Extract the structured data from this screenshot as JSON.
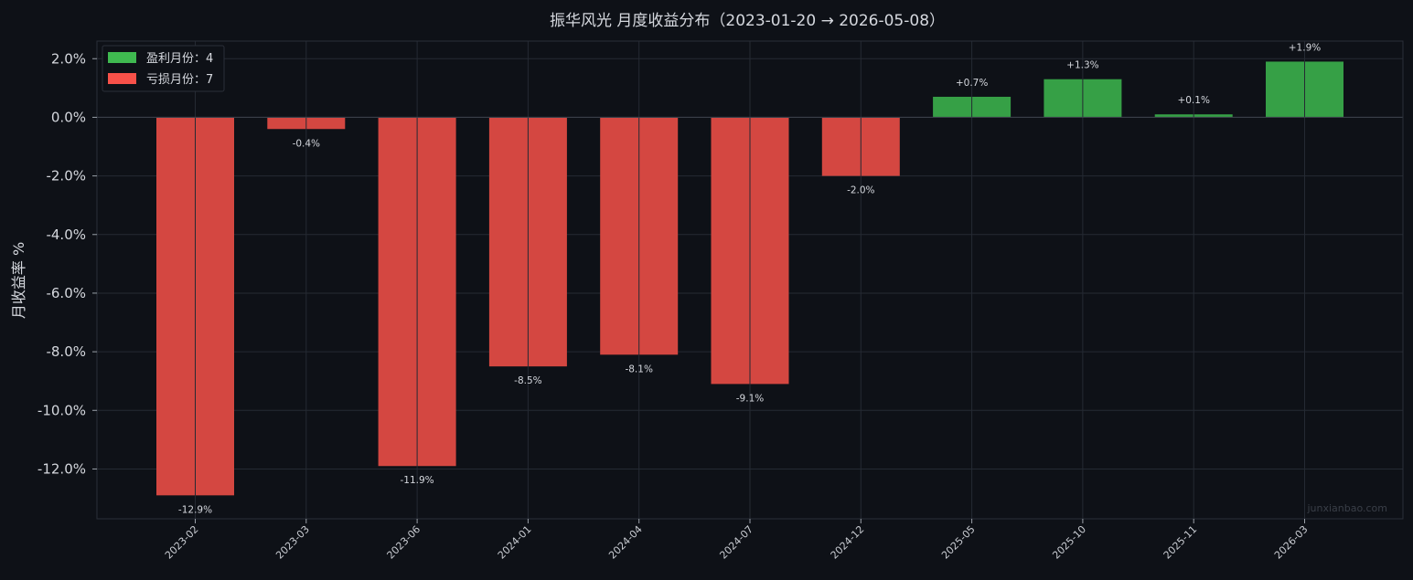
{
  "chart_data": {
    "type": "bar",
    "title": "振华风光 月度收益分布（2023-01-20 → 2026-05-08）",
    "ylabel": "月收益率 %",
    "xlabel": "",
    "ylim": [
      -13.7,
      2.6
    ],
    "yticks": [
      2,
      0,
      -2,
      -4,
      -6,
      -8,
      -10,
      -12
    ],
    "ytick_labels": [
      "2.0%",
      "0.0%",
      "-2.0%",
      "-4.0%",
      "-6.0%",
      "-8.0%",
      "-10.0%",
      "-12.0%"
    ],
    "categories": [
      "2023-02",
      "2023-03",
      "2023-06",
      "2024-01",
      "2024-04",
      "2024-07",
      "2024-12",
      "2025-05",
      "2025-10",
      "2025-11",
      "2026-03"
    ],
    "values": [
      -12.9,
      -0.4,
      -11.9,
      -8.5,
      -8.1,
      -9.1,
      -2.0,
      0.7,
      1.3,
      0.1,
      1.9
    ],
    "data_labels": [
      "-12.9%",
      "-0.4%",
      "-11.9%",
      "-8.5%",
      "-8.1%",
      "-9.1%",
      "-2.0%",
      "+0.7%",
      "+1.3%",
      "+0.1%",
      "+1.9%"
    ],
    "grid": true,
    "legend": {
      "placement": "top-left",
      "entries": [
        {
          "label": "盈利月份：4",
          "color": "#3fb950"
        },
        {
          "label": "亏损月份：7",
          "color": "#f85149"
        }
      ]
    },
    "colors": {
      "positive": "#36a046",
      "negative": "#d44741",
      "background": "#0e1117",
      "grid": "#252a33"
    },
    "watermark": "junxianbao.com"
  }
}
